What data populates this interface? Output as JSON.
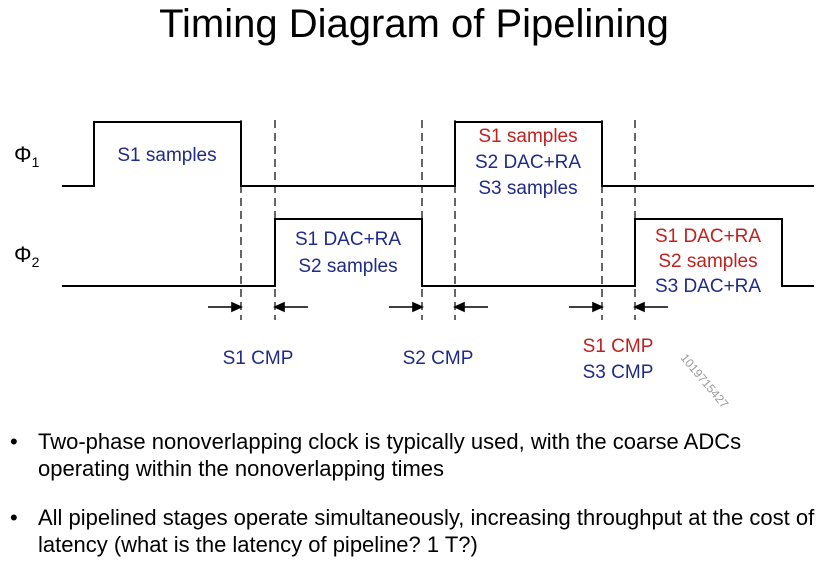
{
  "title": "Timing Diagram of Pipelining",
  "phases": {
    "phi1": "Φ",
    "phi1_sub": "1",
    "phi2": "Φ",
    "phi2_sub": "2"
  },
  "labels": {
    "phi1_high1": "S1 samples",
    "phi1_high2": [
      "S1 samples",
      "S2 DAC+RA",
      "S3 samples"
    ],
    "phi2_high1": [
      "S1 DAC+RA",
      "S2 samples"
    ],
    "phi2_high2": [
      "S1 DAC+RA",
      "S2 samples",
      "S3 DAC+RA"
    ]
  },
  "cmp_labels": {
    "gap1": "S1 CMP",
    "gap2": "S2 CMP",
    "gap3": [
      "S1 CMP",
      "S3 CMP"
    ]
  },
  "watermark": "1019715427",
  "colors": {
    "red": "#c0211f",
    "blue": "#1f2a8a",
    "black": "#000000"
  },
  "bullets": [
    "Two-phase nonoverlapping clock is typically used, with the coarse ADCs operating within the nonoverlapping times",
    "All pipelined stages operate simultaneously, increasing throughput at the cost of latency (what is the latency of pipeline? 1 T?)"
  ]
}
